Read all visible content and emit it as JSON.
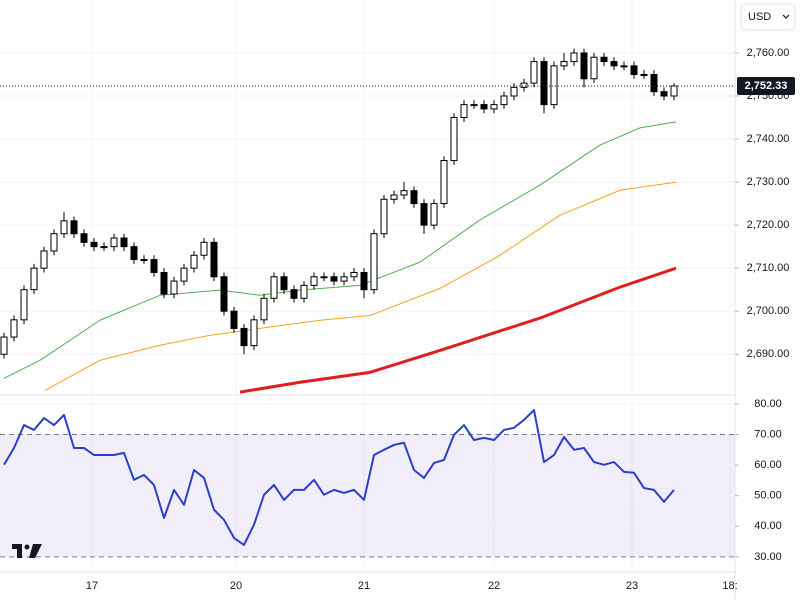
{
  "ui": {
    "currency": "USD"
  },
  "chart_data": [
    {
      "type": "candlestick",
      "x": [
        0,
        1,
        2,
        3,
        4,
        5,
        6,
        7,
        8,
        9,
        10,
        11,
        12,
        13,
        14,
        15,
        16,
        17,
        18,
        19,
        20,
        21,
        22,
        23,
        24,
        25,
        26,
        27,
        28,
        29,
        30,
        31,
        32,
        33,
        34,
        35,
        36,
        37,
        38,
        39,
        40,
        41,
        42,
        43,
        44,
        45,
        46,
        47,
        48,
        49,
        50,
        51,
        52,
        53,
        54,
        55,
        56,
        57,
        58,
        59,
        60,
        61,
        62,
        63,
        64,
        65,
        66,
        67
      ],
      "open": [
        2690,
        2694,
        2698,
        2705,
        2710,
        2714,
        2718,
        2721,
        2718,
        2716,
        2715,
        2715,
        2717,
        2715,
        2712,
        2712,
        2709,
        2704,
        2707,
        2710,
        2713,
        2716,
        2708,
        2700,
        2696,
        2692,
        2698,
        2703,
        2708,
        2705,
        2703,
        2706,
        2708,
        2708,
        2707,
        2708,
        2709,
        2705,
        2718,
        2726,
        2727,
        2728,
        2725,
        2720,
        2725,
        2735,
        2745,
        2748,
        2748,
        2747,
        2748,
        2750,
        2752,
        2753,
        2758,
        2748,
        2757,
        2758,
        2760,
        2754,
        2759,
        2758,
        2757,
        2757,
        2755,
        2755,
        2751,
        2750
      ],
      "high": [
        2695,
        2699,
        2706,
        2711,
        2715,
        2719,
        2723,
        2722,
        2719,
        2717,
        2716,
        2718,
        2718,
        2716,
        2713,
        2713,
        2710,
        2708,
        2711,
        2714,
        2717,
        2717,
        2709,
        2701,
        2697,
        2699,
        2704,
        2709,
        2709,
        2706,
        2707,
        2709,
        2709,
        2709,
        2709,
        2710,
        2710,
        2719,
        2727,
        2728,
        2730,
        2729,
        2726,
        2726,
        2736,
        2746,
        2749,
        2749,
        2749,
        2749,
        2751,
        2753,
        2754,
        2759,
        2759,
        2758,
        2760,
        2761,
        2761,
        2760,
        2760,
        2759,
        2758,
        2758,
        2756,
        2756,
        2752,
        2753
      ],
      "low": [
        2689,
        2693,
        2697,
        2704,
        2709,
        2713,
        2717,
        2717,
        2715,
        2714,
        2714,
        2714,
        2714,
        2711,
        2711,
        2708,
        2703,
        2703,
        2706,
        2709,
        2712,
        2707,
        2699,
        2695,
        2690,
        2691,
        2697,
        2702,
        2704,
        2702,
        2702,
        2705,
        2707,
        2706,
        2706,
        2707,
        2703,
        2704,
        2717,
        2725,
        2726,
        2724,
        2718,
        2719,
        2724,
        2734,
        2744,
        2747,
        2746,
        2746,
        2747,
        2749,
        2751,
        2752,
        2746,
        2747,
        2756,
        2757,
        2752,
        2753,
        2757,
        2756,
        2756,
        2754,
        2754,
        2750,
        2749,
        2749
      ],
      "close": [
        2694,
        2698,
        2705,
        2710,
        2714,
        2718,
        2721,
        2718,
        2716,
        2715,
        2715,
        2717,
        2715,
        2712,
        2712,
        2709,
        2704,
        2707,
        2710,
        2713,
        2716,
        2708,
        2700,
        2696,
        2692,
        2698,
        2703,
        2708,
        2705,
        2703,
        2706,
        2708,
        2708,
        2707,
        2708,
        2709,
        2705,
        2718,
        2726,
        2727,
        2728,
        2725,
        2720,
        2725,
        2735,
        2745,
        2748,
        2748,
        2747,
        2748,
        2750,
        2752,
        2753,
        2758,
        2748,
        2757,
        2758,
        2760,
        2754,
        2759,
        2758,
        2757,
        2757,
        2755,
        2755,
        2751,
        2750,
        2752.33
      ],
      "color_up": "#ffffff",
      "color_down": "#000000",
      "border_color": "#000000",
      "lines": [
        {
          "color": "#4caf50",
          "width": 1,
          "x": [
            0,
            3.6,
            9.6,
            15.6,
            21.6,
            25.6,
            29.6,
            35.6,
            41.6,
            47.6,
            53.6,
            59.6,
            63.6,
            67.2
          ],
          "values": [
            2684.4,
            2688.6,
            2697.9,
            2703.7,
            2704.9,
            2703.7,
            2704.9,
            2706,
            2711.4,
            2721.2,
            2729.3,
            2738.6,
            2742.6,
            2744
          ]
        },
        {
          "color": "#f7a21b",
          "width": 1,
          "x": [
            4.1,
            9.6,
            15.6,
            20.6,
            25.6,
            31.6,
            36.6,
            43.6,
            49.6,
            55.6,
            61.6,
            67.2
          ],
          "values": [
            2681.6,
            2688.6,
            2692.1,
            2694.4,
            2696,
            2697.9,
            2699,
            2705.3,
            2713,
            2722.3,
            2728.1,
            2730
          ]
        },
        {
          "color": "#e01e1e",
          "width": 3,
          "x": [
            23.6,
            29.6,
            36.6,
            43.6,
            53.6,
            61.6,
            67.2
          ],
          "values": [
            2681.2,
            2683.5,
            2685.8,
            2690.9,
            2698.4,
            2705.6,
            2710
          ]
        }
      ],
      "last_price": {
        "value": 2752.33,
        "label": "2,752.33"
      },
      "xlim": [
        -0.4,
        73.1
      ],
      "ylim": [
        2681,
        2772.3
      ],
      "yticks": [
        {
          "value": 2690,
          "label": "2,690.00"
        },
        {
          "value": 2700,
          "label": "2,700.00"
        },
        {
          "value": 2710,
          "label": "2,710.00"
        },
        {
          "value": 2720,
          "label": "2,720.00"
        },
        {
          "value": 2730,
          "label": "2,730.00"
        },
        {
          "value": 2740,
          "label": "2,740.00"
        },
        {
          "value": 2750,
          "label": "2,750.00"
        },
        {
          "value": 2760,
          "label": "2,760.00"
        }
      ],
      "grid": true
    },
    {
      "type": "line",
      "x": [
        0,
        1,
        2,
        3,
        4,
        5,
        6,
        7,
        8,
        9,
        10,
        11,
        12,
        13,
        14,
        15,
        16,
        17,
        18,
        19,
        20,
        21,
        22,
        23,
        24,
        25,
        26,
        27,
        28,
        29,
        30,
        31,
        32,
        33,
        34,
        35,
        36,
        37,
        38,
        39,
        40,
        41,
        42,
        43,
        44,
        45,
        46,
        47,
        48,
        49,
        50,
        51,
        52,
        53,
        54,
        55,
        56,
        57,
        58,
        59,
        60,
        61,
        62,
        63,
        64,
        65,
        66,
        67
      ],
      "values": [
        60.1,
        65.6,
        73.1,
        71.5,
        75.4,
        73.1,
        76.4,
        65.6,
        65.6,
        63.3,
        63.3,
        63.3,
        64.0,
        55.2,
        56.8,
        53.5,
        42.7,
        51.9,
        47.0,
        58.4,
        55.8,
        45.4,
        42.1,
        36.2,
        33.9,
        40.5,
        50.3,
        53.5,
        48.6,
        51.9,
        51.9,
        55.2,
        50.3,
        51.9,
        50.9,
        51.9,
        48.6,
        63.3,
        65.0,
        66.6,
        67.3,
        58.4,
        55.8,
        60.7,
        61.7,
        69.9,
        73.1,
        68.2,
        68.9,
        68.2,
        71.5,
        72.2,
        74.8,
        78.0,
        61.0,
        63.3,
        69.2,
        65.0,
        65.6,
        61.0,
        60.1,
        61.0,
        57.8,
        57.5,
        52.5,
        51.9,
        48.0,
        51.9
      ],
      "color": "#2a3fc8",
      "band": [
        30,
        70
      ],
      "band_color": "#7e57c2",
      "xlim": [
        -0.4,
        73.1
      ],
      "ylim": [
        25.7,
        82.6
      ],
      "yticks": [
        {
          "value": 30,
          "label": "30.00"
        },
        {
          "value": 40,
          "label": "40.00"
        },
        {
          "value": 50,
          "label": "50.00"
        },
        {
          "value": 60,
          "label": "60.00"
        },
        {
          "value": 70,
          "label": "70.00"
        },
        {
          "value": 80,
          "label": "80.00"
        }
      ],
      "xticks": [
        {
          "value": 8.8,
          "label": "17"
        },
        {
          "value": 23.2,
          "label": "20"
        },
        {
          "value": 36,
          "label": "21"
        },
        {
          "value": 49,
          "label": "22"
        },
        {
          "value": 62.8,
          "label": "23"
        },
        {
          "value": 72.6,
          "label": "18:"
        }
      ],
      "grid": true
    }
  ]
}
